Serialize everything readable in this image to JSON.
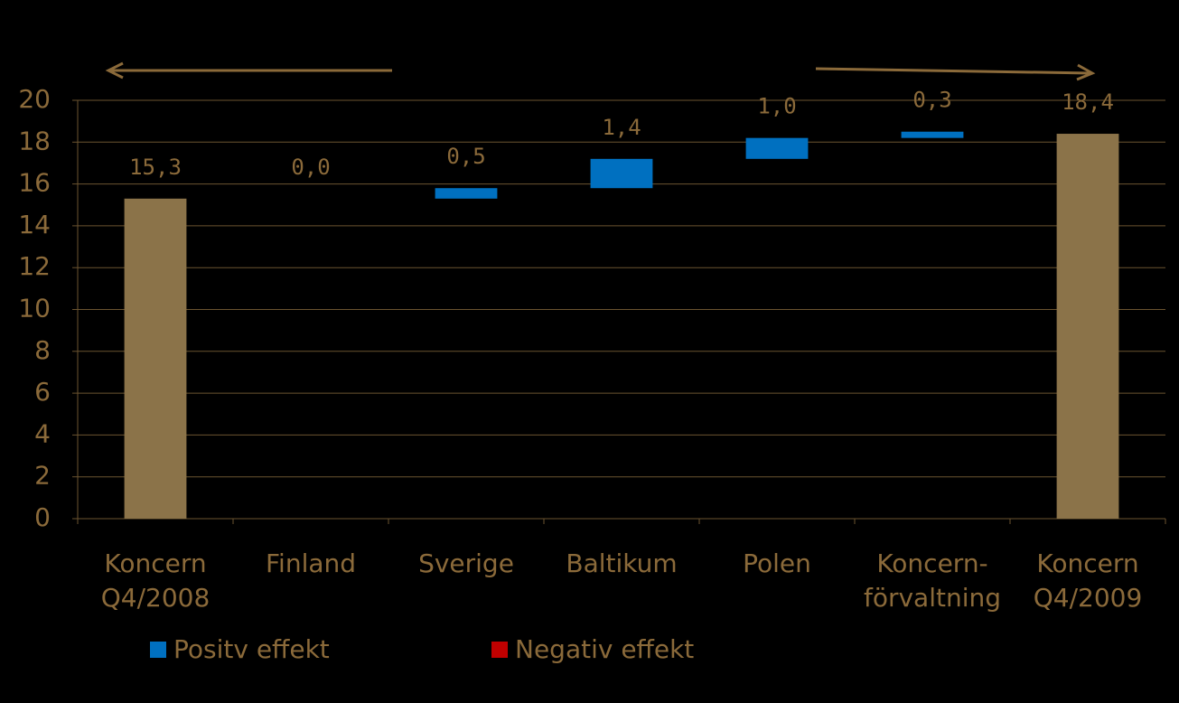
{
  "chart_data": {
    "type": "waterfall",
    "categories": [
      [
        "Koncern",
        "Q4/2008"
      ],
      [
        "Finland"
      ],
      [
        "Sverige"
      ],
      [
        "Baltikum"
      ],
      [
        "Polen"
      ],
      [
        "Koncern-",
        "förvaltning"
      ],
      [
        "Koncern",
        "Q4/2009"
      ]
    ],
    "values": [
      15.3,
      0.0,
      0.5,
      1.4,
      1.0,
      0.3,
      18.4
    ],
    "value_labels": [
      "15,3",
      "0,0",
      "0,5",
      "1,4",
      "1,0",
      "0,3",
      "18,4"
    ],
    "measure": [
      "total",
      "relative",
      "relative",
      "relative",
      "relative",
      "relative",
      "total"
    ],
    "total_color": "#8b7349",
    "legend": [
      {
        "name": "Positv effekt",
        "color": "#0070c0"
      },
      {
        "name": "Negativ effekt",
        "color": "#c00000"
      }
    ],
    "ylim": [
      0,
      20
    ],
    "yticks": [
      0,
      2,
      4,
      6,
      8,
      10,
      12,
      14,
      16,
      18,
      20
    ],
    "grid": true
  }
}
